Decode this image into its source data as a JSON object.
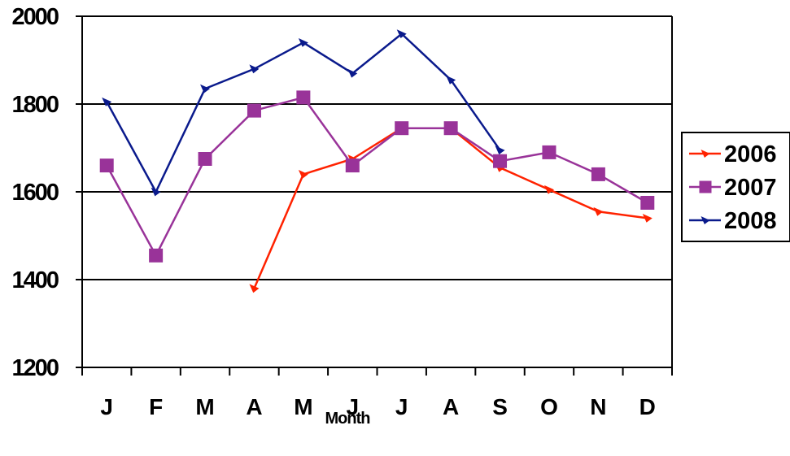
{
  "chart_data": {
    "type": "line",
    "xlabel": "Month",
    "ylabel": "",
    "ylim": [
      1200,
      2000
    ],
    "yticks": [
      1200,
      1400,
      1600,
      1800,
      2000
    ],
    "ytick_labels": [
      "1200",
      "1400",
      "1600",
      "1800",
      "2000"
    ],
    "grid": true,
    "legend_position": "right",
    "categories": [
      "J",
      "F",
      "M",
      "A",
      "M",
      "J",
      "J",
      "A",
      "S",
      "O",
      "N",
      "D"
    ],
    "series": [
      {
        "name": "2006",
        "color": "#FF2200",
        "marker": "triangle",
        "values": [
          null,
          null,
          null,
          1380,
          1640,
          1675,
          1745,
          1745,
          1655,
          1605,
          1555,
          1540
        ]
      },
      {
        "name": "2007",
        "color": "#993399",
        "marker": "square",
        "values": [
          1660,
          1455,
          1675,
          1785,
          1815,
          1660,
          1745,
          1745,
          1670,
          1690,
          1640,
          1575
        ]
      },
      {
        "name": "2008",
        "color": "#0A1A8C",
        "marker": "triangle",
        "values": [
          1805,
          1600,
          1835,
          1880,
          1940,
          1870,
          1960,
          1855,
          1695,
          null,
          null,
          null
        ]
      }
    ]
  }
}
